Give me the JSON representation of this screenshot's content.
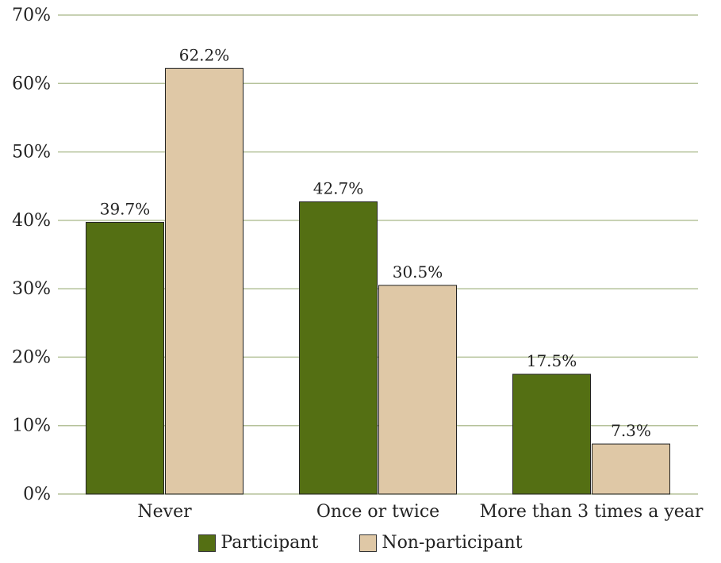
{
  "chart_data": {
    "type": "bar",
    "categories": [
      "Never",
      "Once or twice",
      "More than 3 times a year"
    ],
    "series": [
      {
        "name": "Participant",
        "values": [
          39.7,
          42.7,
          17.5
        ],
        "labels": [
          "39.7%",
          "42.7%",
          "17.5%"
        ],
        "color": "#546f13"
      },
      {
        "name": "Non-participant",
        "values": [
          62.2,
          30.5,
          7.3
        ],
        "labels": [
          "62.2%",
          "30.5%",
          "7.3%"
        ],
        "color": "#dfc8a6"
      }
    ],
    "yticks": [
      "0%",
      "10%",
      "20%",
      "30%",
      "40%",
      "50%",
      "60%",
      "70%"
    ],
    "ylim": [
      0,
      70
    ],
    "grid": true,
    "grid_color": "#b5c29a",
    "legend_position": "bottom"
  }
}
